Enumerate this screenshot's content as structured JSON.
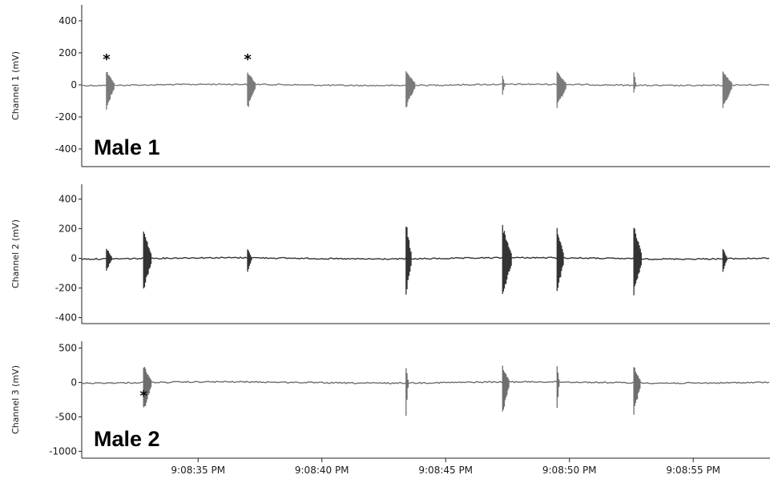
{
  "chart_data": {
    "type": "line",
    "x_axis": {
      "ticks": [
        "9:08:35 PM",
        "9:08:40 PM",
        "9:08:45 PM",
        "9:08:50 PM",
        "9:08:55 PM"
      ],
      "tick_seconds": [
        35,
        40,
        45,
        50,
        55
      ],
      "range_seconds": [
        30.3,
        58.1
      ]
    },
    "panels": [
      {
        "ylabel": "Channel 1 (mV)",
        "yticks": [
          "400",
          "200",
          "0",
          "-200",
          "-400"
        ],
        "ytick_values": [
          400,
          200,
          0,
          -200,
          -400
        ],
        "ylim": [
          -510,
          500
        ],
        "label": "Male 1",
        "color": "#7a7a7a",
        "markers": [
          {
            "time": 31.3,
            "symbol": "*"
          },
          {
            "time": 37.0,
            "symbol": "*"
          }
        ],
        "bursts": [
          {
            "t": 31.3,
            "dur": 0.3,
            "up": 90,
            "down": -160
          },
          {
            "t": 37.0,
            "dur": 0.3,
            "up": 90,
            "down": -160
          },
          {
            "t": 43.4,
            "dur": 0.35,
            "up": 90,
            "down": -150
          },
          {
            "t": 47.3,
            "dur": 0.08,
            "up": 70,
            "down": -70
          },
          {
            "t": 49.5,
            "dur": 0.35,
            "up": 90,
            "down": -150
          },
          {
            "t": 52.6,
            "dur": 0.08,
            "up": 90,
            "down": -50
          },
          {
            "t": 56.2,
            "dur": 0.35,
            "up": 90,
            "down": -160
          }
        ]
      },
      {
        "ylabel": "Channel 2 (mV)",
        "yticks": [
          "400",
          "200",
          "0",
          "-200",
          "-400"
        ],
        "ytick_values": [
          400,
          200,
          0,
          -200,
          -400
        ],
        "ylim": [
          -440,
          500
        ],
        "label": "",
        "color": "#333333",
        "markers": [],
        "bursts": [
          {
            "t": 31.3,
            "dur": 0.2,
            "up": 80,
            "down": -90
          },
          {
            "t": 32.8,
            "dur": 0.3,
            "up": 200,
            "down": -230
          },
          {
            "t": 37.0,
            "dur": 0.15,
            "up": 70,
            "down": -100
          },
          {
            "t": 43.4,
            "dur": 0.2,
            "up": 260,
            "down": -280
          },
          {
            "t": 47.3,
            "dur": 0.35,
            "up": 230,
            "down": -270
          },
          {
            "t": 49.5,
            "dur": 0.25,
            "up": 230,
            "down": -250
          },
          {
            "t": 52.6,
            "dur": 0.3,
            "up": 240,
            "down": -260
          },
          {
            "t": 56.2,
            "dur": 0.15,
            "up": 70,
            "down": -100
          }
        ]
      },
      {
        "ylabel": "Channel 3 (mV)",
        "yticks": [
          "500",
          "0",
          "-500",
          "-1000"
        ],
        "ytick_values": [
          500,
          0,
          -500,
          -1000
        ],
        "ylim": [
          -1100,
          600
        ],
        "label": "Male 2",
        "color": "#6e6e6e",
        "markers": [
          {
            "time": 32.8,
            "symbol": "*"
          }
        ],
        "bursts": [
          {
            "t": 32.8,
            "dur": 0.3,
            "up": 260,
            "down": -450
          },
          {
            "t": 43.4,
            "dur": 0.08,
            "up": 250,
            "down": -500
          },
          {
            "t": 47.3,
            "dur": 0.25,
            "up": 250,
            "down": -480
          },
          {
            "t": 49.5,
            "dur": 0.08,
            "up": 260,
            "down": -420
          },
          {
            "t": 52.6,
            "dur": 0.25,
            "up": 250,
            "down": -480
          }
        ]
      }
    ]
  }
}
